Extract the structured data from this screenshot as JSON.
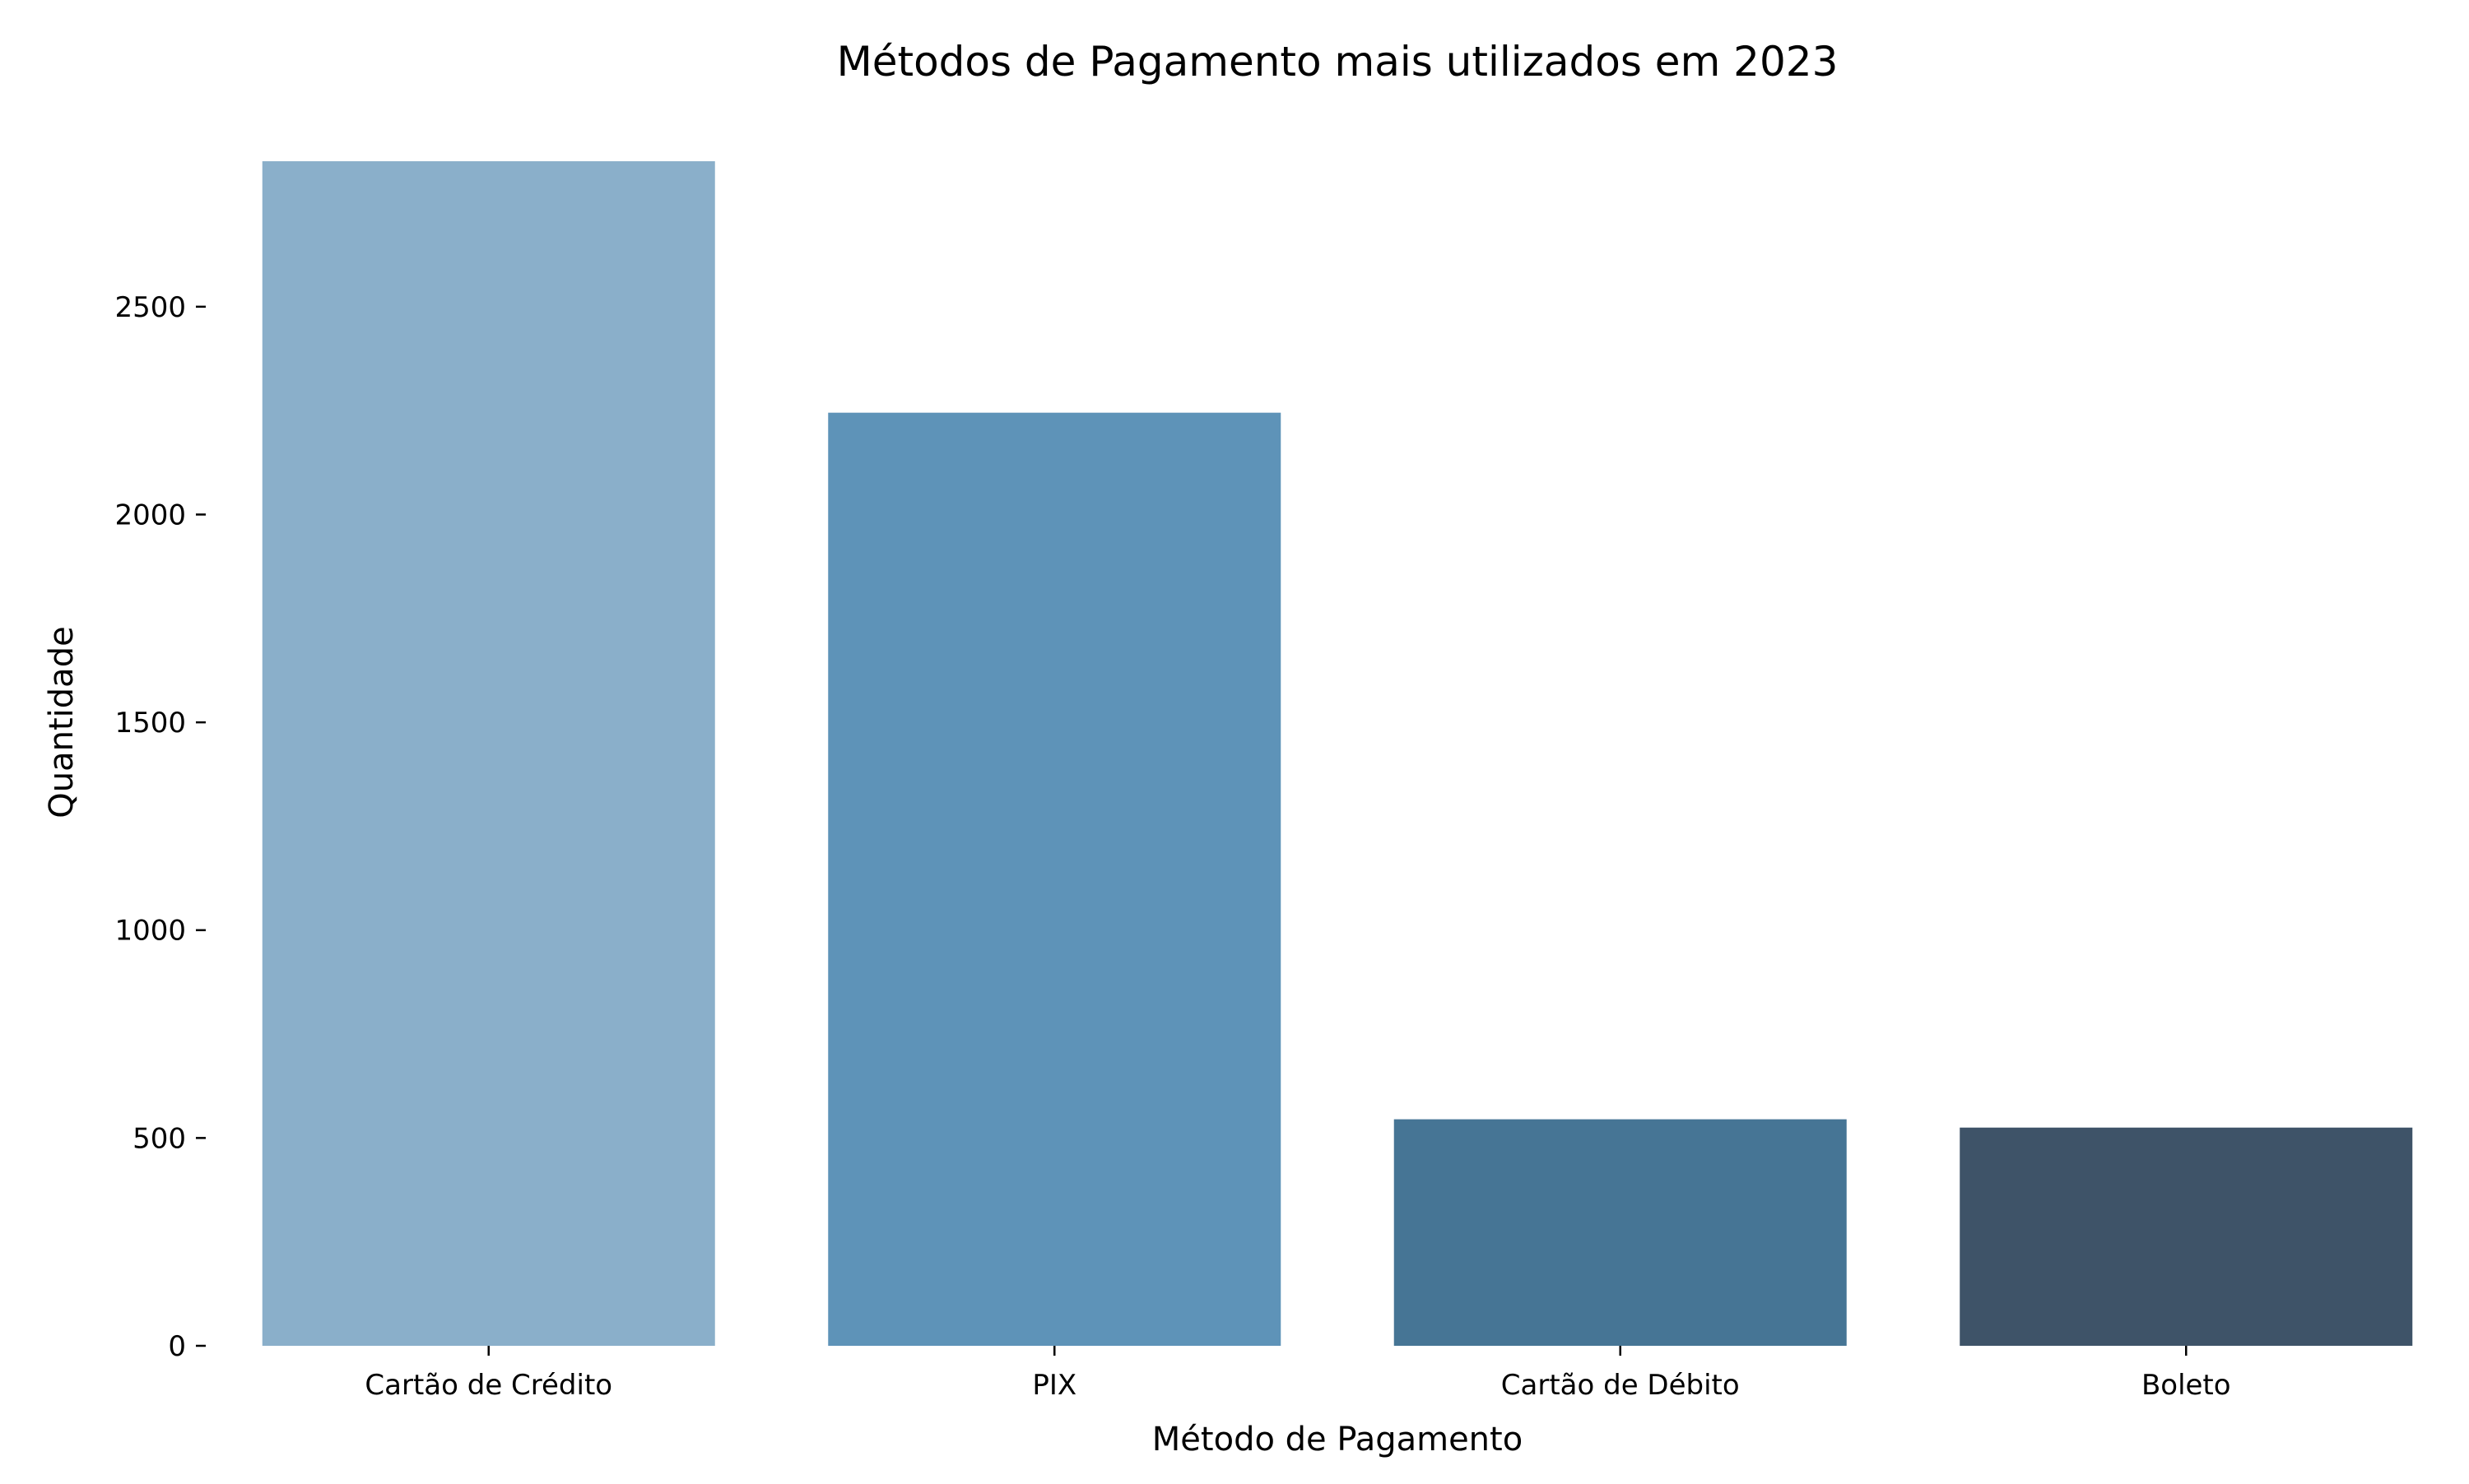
{
  "chart_data": {
    "type": "bar",
    "title": "Métodos de Pagamento mais utilizados em 2023",
    "xlabel": "Método de Pagamento",
    "ylabel": "Quantidade",
    "categories": [
      "Cartão de Crédito",
      "PIX",
      "Cartão de Débito",
      "Boleto"
    ],
    "values": [
      2850,
      2245,
      545,
      525
    ],
    "colors": [
      "#8aafca",
      "#5e93b8",
      "#467595",
      "#3e5368"
    ],
    "ylim": [
      0,
      2850
    ],
    "yticks": [
      0,
      500,
      1000,
      1500,
      2000,
      2500
    ],
    "grid": false,
    "legend": "none",
    "spines": false
  }
}
